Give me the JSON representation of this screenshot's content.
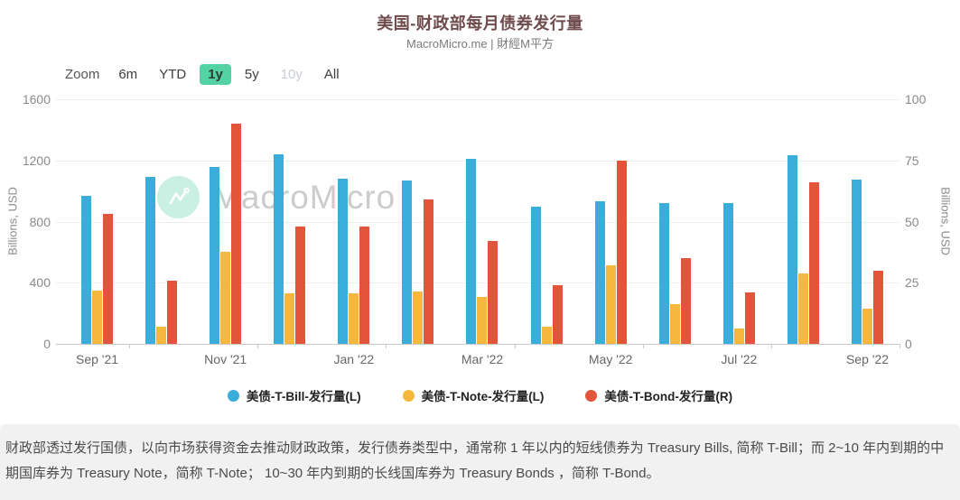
{
  "header": {
    "title": "美国-财政部每月债券发行量",
    "subtitle": "MacroMicro.me | 財經M平方"
  },
  "toolbar": {
    "zoom_label": "Zoom",
    "buttons": [
      {
        "label": "6m",
        "state": "normal"
      },
      {
        "label": "YTD",
        "state": "normal"
      },
      {
        "label": "1y",
        "state": "active"
      },
      {
        "label": "5y",
        "state": "normal"
      },
      {
        "label": "10y",
        "state": "disabled"
      },
      {
        "label": "All",
        "state": "normal"
      }
    ],
    "active_color": "#53d2a3"
  },
  "chart_data": {
    "type": "bar",
    "title": "美国-财政部每月债券发行量",
    "categories": [
      "Sep '21",
      "Oct '21",
      "Nov '21",
      "Dec '21",
      "Jan '22",
      "Feb '22",
      "Mar '22",
      "Apr '22",
      "May '22",
      "Jun '22",
      "Jul '22",
      "Aug '22",
      "Sep '22"
    ],
    "x_tick_labels": [
      "Sep '21",
      "Nov '21",
      "Jan '22",
      "Mar '22",
      "May '22",
      "Jul '22",
      "Sep '22"
    ],
    "series": [
      {
        "name": "美债-T-Bill-发行量(L)",
        "axis": "left",
        "color": "#3BADDB",
        "values": [
          970,
          1090,
          1160,
          1240,
          1080,
          1070,
          1210,
          900,
          930,
          920,
          920,
          1235,
          1075
        ]
      },
      {
        "name": "美债-T-Note-发行量(L)",
        "axis": "left",
        "color": "#F6B83C",
        "values": [
          350,
          115,
          605,
          330,
          330,
          345,
          305,
          110,
          515,
          260,
          100,
          460,
          230
        ]
      },
      {
        "name": "美债-T-Bond-发行量(R)",
        "axis": "right",
        "color": "#E2553B",
        "values": [
          53,
          26,
          90,
          48,
          48,
          59,
          42,
          24,
          75,
          35,
          21,
          66,
          30
        ]
      }
    ],
    "left_axis": {
      "title": "Billions, USD",
      "min": 0,
      "max": 1600,
      "ticks": [
        0,
        400,
        800,
        1200,
        1600
      ]
    },
    "right_axis": {
      "title": "Billions, USD",
      "min": 0,
      "max": 100,
      "ticks": [
        0,
        25,
        50,
        75,
        100
      ]
    },
    "grid": true,
    "legend_position": "bottom",
    "watermark": "MacroMicro"
  },
  "footer": {
    "text": "财政部透过发行国债，以向市场获得资金去推动财政政策，发行债券类型中，通常称 1 年以内的短线债券为 Treasury Bills, 简称 T-Bill；而 2~10 年内到期的中期国库券为 Treasury Note，简称 T-Note； 10~30 年内到期的长线国库券为 Treasury Bonds ，简称 T-Bond。"
  }
}
